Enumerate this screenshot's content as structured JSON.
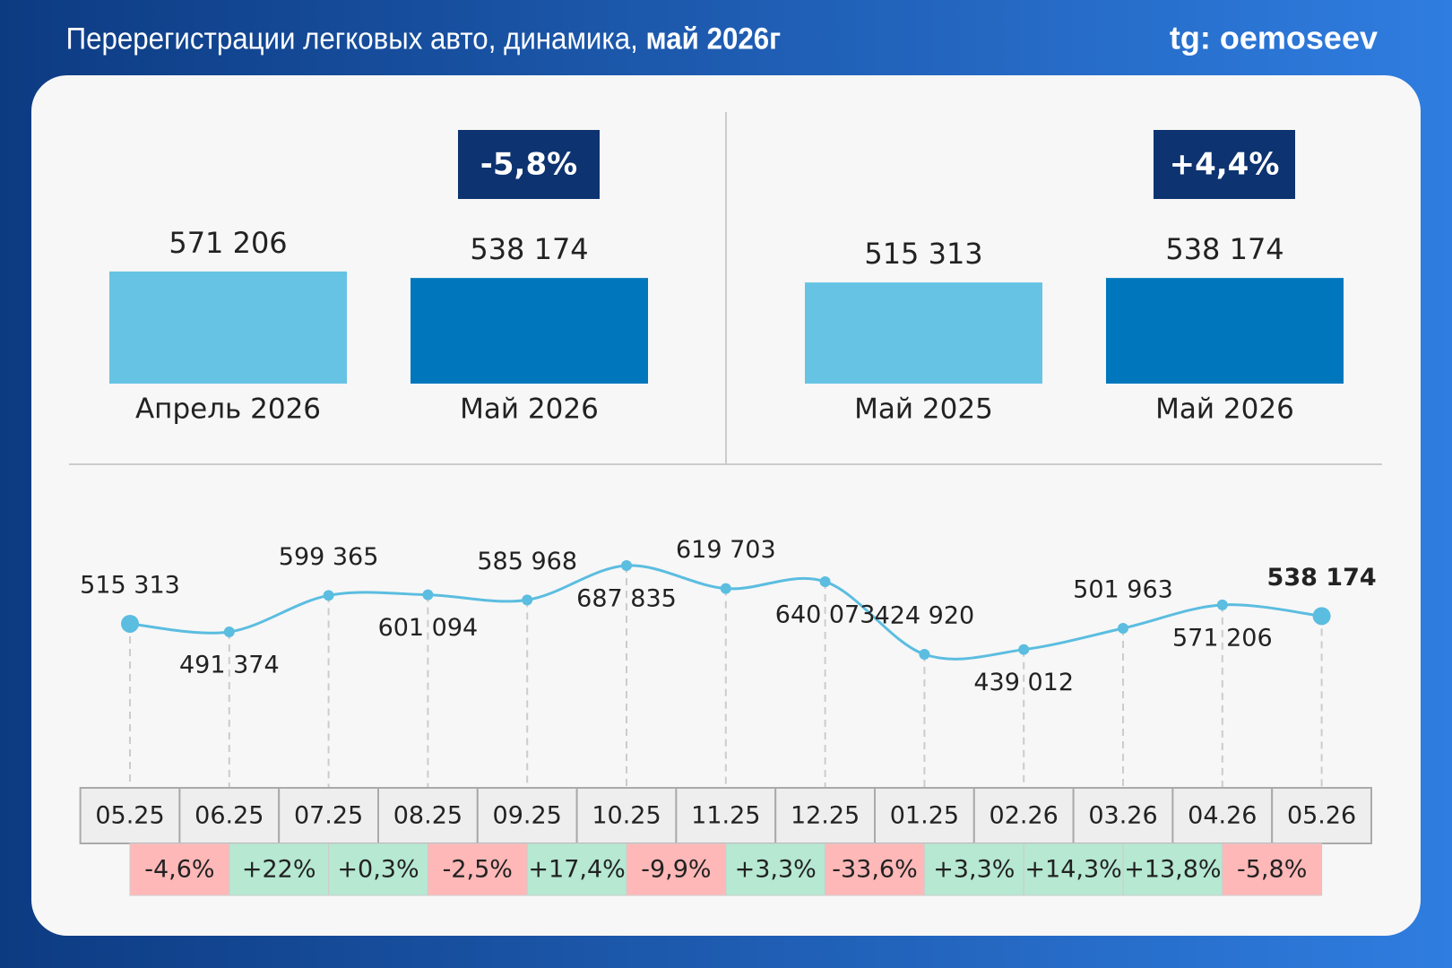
{
  "header": {
    "title": "Перерегистрации легковых авто, динамика,",
    "title_emphasis": "май 2026г",
    "handle": "tg: oemoseev"
  },
  "chart_data": [
    {
      "type": "bar",
      "categories": [
        "Апрель 2026",
        "Май 2026"
      ],
      "values": [
        571206,
        538174
      ],
      "value_labels": [
        "571 206",
        "538 174"
      ],
      "colors": [
        "#66c3e4",
        "#0077bd"
      ],
      "annotation": "-5,8%"
    },
    {
      "type": "bar",
      "categories": [
        "Май 2025",
        "Май 2026"
      ],
      "values": [
        515313,
        538174
      ],
      "value_labels": [
        "515 313",
        "538 174"
      ],
      "colors": [
        "#66c3e4",
        "#0077bd"
      ],
      "annotation": "+4,4%"
    },
    {
      "type": "line",
      "color": "#5bbde0",
      "categories": [
        "05.25",
        "06.25",
        "07.25",
        "08.25",
        "09.25",
        "10.25",
        "11.25",
        "12.25",
        "01.25",
        "02.26",
        "03.26",
        "04.26",
        "05.26"
      ],
      "values": [
        515313,
        491374,
        599365,
        601094,
        585968,
        687835,
        619703,
        640073,
        424920,
        439012,
        501963,
        571206,
        538174
      ],
      "value_labels": [
        "515 313",
        "491 374",
        "599 365",
        "601 094",
        "585 968",
        "687 835",
        "619 703",
        "640 073",
        "424 920",
        "439 012",
        "501 963",
        "571 206",
        "538 174"
      ],
      "changes": [
        -4.6,
        22,
        0.3,
        -2.5,
        17.4,
        -9.9,
        3.3,
        -33.6,
        3.3,
        14.3,
        13.8,
        -5.8
      ],
      "change_labels": [
        "-4,6%",
        "+22%",
        "+0,3%",
        "-2,5%",
        "+17,4%",
        "-9,9%",
        "+3,3%",
        "-33,6%",
        "+3,3%",
        "+14,3%",
        "+13,8%",
        "-5,8%"
      ],
      "positive_color": "#b6e8d2",
      "negative_color": "#ffb8b8"
    }
  ]
}
